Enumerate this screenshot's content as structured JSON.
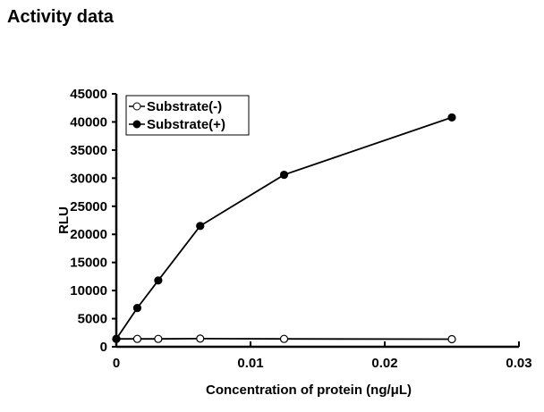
{
  "page_title": "Activity data",
  "chart_data": {
    "type": "line",
    "title": "Activity data",
    "xlabel": "Concentration of protein (ng/μL)",
    "ylabel": "RLU",
    "xlim": [
      0,
      0.03
    ],
    "ylim": [
      0,
      45000
    ],
    "xticks": [
      0,
      0.01,
      0.02,
      0.03
    ],
    "xtick_labels": [
      "0",
      "0.01",
      "0.02",
      "0.03"
    ],
    "yticks": [
      0,
      5000,
      10000,
      15000,
      20000,
      25000,
      30000,
      35000,
      40000,
      45000
    ],
    "ytick_labels": [
      "0",
      "5000",
      "10000",
      "15000",
      "20000",
      "25000",
      "30000",
      "35000",
      "40000",
      "45000"
    ],
    "grid": false,
    "legend_position": "top-left",
    "x": [
      0,
      0.0015625,
      0.003125,
      0.00625,
      0.0125,
      0.025
    ],
    "series": [
      {
        "name": "Substrate(-)",
        "marker": "open-circle",
        "values": [
          1400,
          1400,
          1400,
          1450,
          1400,
          1350
        ]
      },
      {
        "name": "Substrate(+)",
        "marker": "filled-circle",
        "values": [
          1400,
          6900,
          11800,
          21500,
          30600,
          40800
        ]
      }
    ]
  }
}
